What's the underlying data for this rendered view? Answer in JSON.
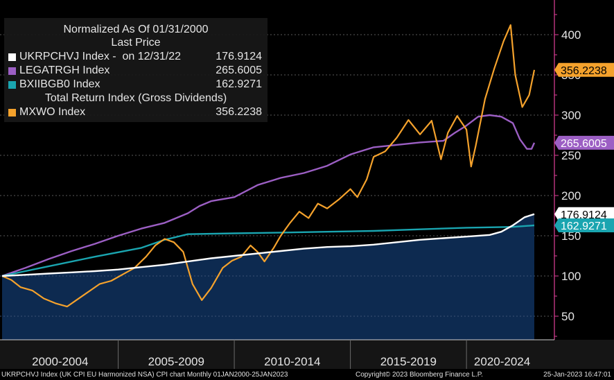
{
  "chart_data": {
    "type": "line",
    "title": "Normalized As Of 01/31/2000",
    "subtitle": "Last Price",
    "x_range": [
      2000.0,
      2023.07
    ],
    "ylim": [
      25,
      460
    ],
    "y_ticks": [
      50,
      100,
      150,
      200,
      250,
      300,
      350,
      400
    ],
    "x_groups": [
      {
        "label": "2000-2004",
        "start": 2000,
        "end": 2005
      },
      {
        "label": "2005-2009",
        "start": 2005,
        "end": 2010
      },
      {
        "label": "2010-2014",
        "start": 2010,
        "end": 2015
      },
      {
        "label": "2015-2019",
        "start": 2015,
        "end": 2020
      },
      {
        "label": "2020-2024",
        "start": 2020,
        "end": 2023.07
      }
    ],
    "series": [
      {
        "name": "UKRPCHVJ Index",
        "legend_label": "UKRPCHVJ Index -  on 12/31/22",
        "last_value": "176.9124",
        "color": "#ffffff",
        "fill": "#0d2a50",
        "x": [
          2000,
          2001,
          2002,
          2003,
          2004,
          2005,
          2006,
          2007,
          2008,
          2009,
          2010,
          2011,
          2012,
          2013,
          2014,
          2015,
          2016,
          2017,
          2018,
          2019,
          2020,
          2021,
          2021.5,
          2022,
          2022.5,
          2022.92
        ],
        "values": [
          100,
          101.5,
          103,
          104.5,
          106,
          108,
          111,
          114,
          118,
          122,
          125,
          128,
          131,
          134,
          136,
          137,
          139,
          142,
          145,
          147,
          149,
          151,
          155,
          163,
          173,
          176.9
        ]
      },
      {
        "name": "LEGATRGH Index",
        "legend_label": "LEGATRGH Index",
        "last_value": "265.6005",
        "color": "#9c5fc4",
        "x": [
          2000,
          2001,
          2002,
          2003,
          2004,
          2005,
          2006,
          2007,
          2008,
          2008.5,
          2009,
          2010,
          2011,
          2012,
          2013,
          2014,
          2015,
          2016,
          2017,
          2018,
          2019,
          2019.5,
          2020,
          2020.5,
          2021,
          2021.5,
          2022,
          2022.3,
          2022.6,
          2022.8,
          2022.92
        ],
        "values": [
          100,
          110,
          121,
          131,
          140,
          150,
          159,
          166,
          178,
          187,
          193,
          198,
          213,
          222,
          228,
          237,
          251,
          260,
          263,
          266,
          268,
          278,
          287,
          298,
          300,
          298,
          290,
          270,
          258,
          258,
          265.6
        ]
      },
      {
        "name": "BXIIBGB0 Index",
        "legend_label": "BXIIBGB0 Index",
        "last_value": "162.9271",
        "color": "#1aa5b0",
        "x": [
          2000,
          2002,
          2004,
          2006,
          2007,
          2008,
          2010,
          2012,
          2014,
          2016,
          2018,
          2020,
          2022,
          2022.92
        ],
        "values": [
          100,
          112,
          124,
          135,
          145,
          152,
          153,
          154,
          155,
          156,
          158,
          160,
          161,
          162.9
        ]
      },
      {
        "name": "MXWO Index",
        "legend_label": "MXWO Index",
        "last_value": "356.2238",
        "color": "#f5a22c",
        "x": [
          2000,
          2000.4,
          2000.8,
          2001.3,
          2001.8,
          2002.3,
          2002.8,
          2003.2,
          2003.7,
          2004.2,
          2004.7,
          2005.2,
          2005.7,
          2006.2,
          2006.6,
          2007.0,
          2007.4,
          2007.8,
          2008.2,
          2008.6,
          2009.0,
          2009.2,
          2009.5,
          2009.9,
          2010.3,
          2010.7,
          2011.0,
          2011.3,
          2011.7,
          2012.0,
          2012.4,
          2012.8,
          2013.2,
          2013.6,
          2014.0,
          2014.5,
          2015.0,
          2015.3,
          2015.7,
          2016.0,
          2016.5,
          2017.0,
          2017.5,
          2018.0,
          2018.5,
          2018.9,
          2019.2,
          2019.6,
          2020.0,
          2020.2,
          2020.4,
          2020.8,
          2021.2,
          2021.6,
          2021.9,
          2022.1,
          2022.4,
          2022.7,
          2022.92
        ],
        "values": [
          100,
          95,
          86,
          82,
          72,
          66,
          62,
          70,
          80,
          90,
          94,
          102,
          110,
          124,
          138,
          146,
          142,
          130,
          90,
          70,
          85,
          95,
          110,
          119,
          124,
          138,
          130,
          118,
          135,
          150,
          166,
          180,
          172,
          190,
          184,
          195,
          208,
          198,
          220,
          248,
          255,
          272,
          294,
          276,
          293,
          245,
          278,
          299,
          282,
          236,
          262,
          320,
          358,
          392,
          412,
          350,
          310,
          325,
          356.2
        ]
      }
    ]
  },
  "footer": {
    "left": "UKRPCHVJ Index (UK CPI EU Harmonized NSA) CPI chart  Monthly 01JAN2000-25JAN2023",
    "center": "Copyright© 2023 Bloomberg Finance L.P.",
    "right": "25-Jan-2023 16:47:01"
  },
  "legend": {
    "title": "Normalized As Of 01/31/2000",
    "subtitle": "Last Price",
    "mxwo_note": "Total Return Index (Gross Dividends)"
  }
}
